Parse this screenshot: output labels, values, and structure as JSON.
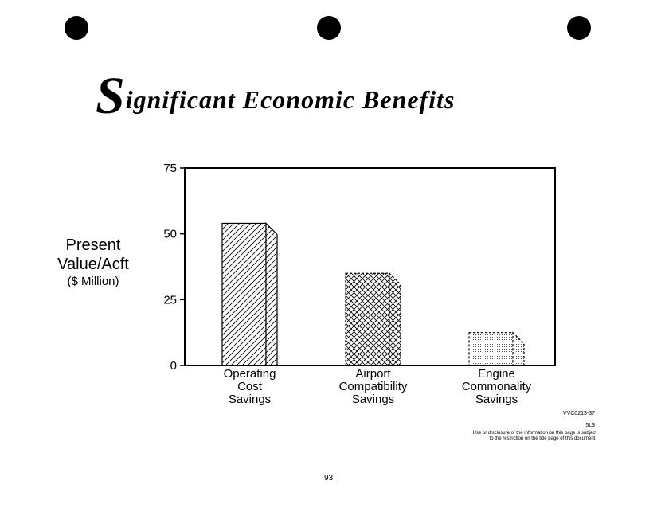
{
  "title": {
    "initial": "S",
    "rest": "ignificant Economic Benefits"
  },
  "y_axis_label": {
    "line1": "Present",
    "line2": "Value/Acft",
    "unit": "($ Million)"
  },
  "chart_data": {
    "type": "bar",
    "title": "Significant Economic Benefits",
    "ylabel": "Present Value/Acft ($ Million)",
    "ylim": [
      0,
      75
    ],
    "yticks": [
      "0",
      "25",
      "50",
      "75"
    ],
    "categories": [
      [
        "Operating",
        "Cost",
        "Savings"
      ],
      [
        "Airport",
        "Compatibility",
        "Savings"
      ],
      [
        "Engine",
        "Commonality",
        "Savings"
      ]
    ],
    "values": [
      54,
      35,
      12.5
    ],
    "fills": [
      "diagonal-hatch",
      "crosshatch",
      "stipple"
    ],
    "grid": false
  },
  "footer": {
    "code": "VVC0213-37",
    "ref": "5L3",
    "disclaimer_line1": "Use or disclosure of the information on this page is subject",
    "disclaimer_line2": "to the restriction on the title page of this document.",
    "page_number": "93"
  }
}
